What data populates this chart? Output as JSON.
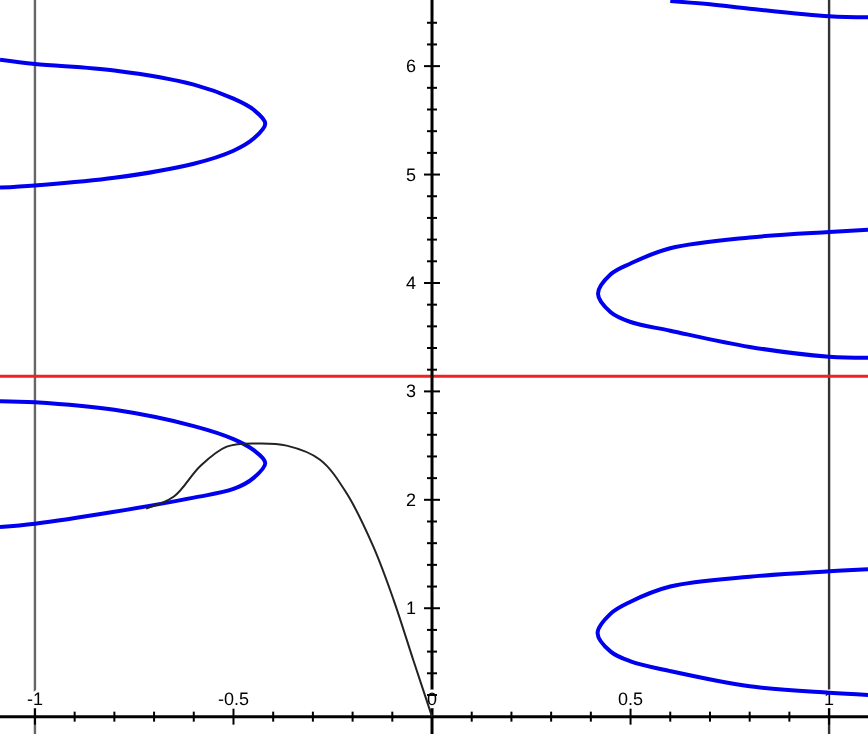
{
  "chart_data": {
    "type": "line",
    "xlim": [
      -1.088,
      1.098
    ],
    "ylim": [
      -0.16,
      6.61
    ],
    "xticks": [
      -1,
      {
        "value": -0.9,
        "label": null
      },
      {
        "value": -0.8,
        "label": null
      },
      {
        "value": -0.7,
        "label": null
      },
      {
        "value": -0.6,
        "label": null
      },
      -0.5,
      {
        "value": -0.4,
        "label": null
      },
      {
        "value": -0.3,
        "label": null
      },
      {
        "value": -0.2,
        "label": null
      },
      {
        "value": -0.1,
        "label": null
      },
      0,
      {
        "value": 0.1,
        "label": null
      },
      {
        "value": 0.2,
        "label": null
      },
      {
        "value": 0.3,
        "label": null
      },
      {
        "value": 0.4,
        "label": null
      },
      0.5,
      {
        "value": 0.6,
        "label": null
      },
      {
        "value": 0.7,
        "label": null
      },
      {
        "value": 0.8,
        "label": null
      },
      {
        "value": 0.9,
        "label": null
      },
      1
    ],
    "yticks": [
      {
        "value": 0.2,
        "label": null
      },
      {
        "value": 0.4,
        "label": null
      },
      {
        "value": 0.6,
        "label": null
      },
      {
        "value": 0.8,
        "label": null
      },
      1,
      {
        "value": 1.2,
        "label": null
      },
      {
        "value": 1.4,
        "label": null
      },
      {
        "value": 1.6,
        "label": null
      },
      {
        "value": 1.8,
        "label": null
      },
      2,
      {
        "value": 2.2,
        "label": null
      },
      {
        "value": 2.4,
        "label": null
      },
      {
        "value": 2.6,
        "label": null
      },
      {
        "value": 2.8,
        "label": null
      },
      3,
      {
        "value": 3.2,
        "label": null
      },
      {
        "value": 3.4,
        "label": null
      },
      {
        "value": 3.6,
        "label": null
      },
      {
        "value": 3.8,
        "label": null
      },
      4,
      {
        "value": 4.2,
        "label": null
      },
      {
        "value": 4.4,
        "label": null
      },
      {
        "value": 4.6,
        "label": null
      },
      {
        "value": 4.8,
        "label": null
      },
      5,
      {
        "value": 5.2,
        "label": null
      },
      {
        "value": 5.4,
        "label": null
      },
      {
        "value": 5.6,
        "label": null
      },
      {
        "value": 5.8,
        "label": null
      },
      6,
      {
        "value": 6.2,
        "label": null
      },
      {
        "value": 6.4,
        "label": null
      }
    ],
    "grid": false,
    "ref_lines": [
      {
        "axis": "x",
        "value": -1,
        "color": "#666666"
      },
      {
        "axis": "x",
        "value": 1,
        "color": "#333333"
      },
      {
        "axis": "y",
        "value": 3.14,
        "color": "#ee2222"
      }
    ],
    "series": [
      {
        "color": "#0000ee",
        "x": [
          -1.088,
          -1,
          -0.8,
          -0.6,
          -0.5,
          -0.45,
          -0.42,
          -0.45,
          -0.5,
          -0.6,
          -0.8,
          -1,
          -1.088
        ],
        "values": [
          6.06,
          6.02,
          5.96,
          5.83,
          5.7,
          5.6,
          5.47,
          5.33,
          5.22,
          5.1,
          4.97,
          4.9,
          4.88
        ]
      },
      {
        "color": "#0000ee",
        "x": [
          -1.088,
          -1,
          -0.8,
          -0.6,
          -0.5,
          -0.45,
          -0.42,
          -0.45,
          -0.5,
          -0.6,
          -0.8,
          -1,
          -1.088
        ],
        "values": [
          2.91,
          2.9,
          2.83,
          2.68,
          2.56,
          2.46,
          2.34,
          2.2,
          2.1,
          2.02,
          1.89,
          1.78,
          1.75
        ]
      },
      {
        "color": "#0000ee",
        "x": [
          1.098,
          1,
          0.8,
          0.6,
          0.5,
          0.45,
          0.418,
          0.45,
          0.5,
          0.6,
          0.8,
          1,
          1.098
        ],
        "values": [
          4.49,
          4.47,
          4.42,
          4.32,
          4.18,
          4.08,
          3.9,
          3.73,
          3.64,
          3.56,
          3.41,
          3.32,
          3.31
        ]
      },
      {
        "color": "#0000ee",
        "x": [
          1.098,
          1,
          0.8,
          0.6,
          0.5,
          0.45,
          0.417,
          0.45,
          0.5,
          0.6,
          0.8,
          1,
          1.098
        ],
        "values": [
          1.36,
          1.34,
          1.29,
          1.2,
          1.06,
          0.95,
          0.77,
          0.6,
          0.51,
          0.42,
          0.28,
          0.22,
          0.2
        ]
      },
      {
        "color": "#0000ee",
        "x": [
          0.6,
          0.7,
          0.8,
          1,
          1.098
        ],
        "values": [
          6.6,
          6.57,
          6.53,
          6.46,
          6.45
        ]
      },
      {
        "color": "#222222",
        "x": [
          -0.72,
          -0.65,
          -0.584,
          -0.517,
          -0.44,
          -0.366,
          -0.282,
          -0.215,
          -0.148,
          -0.097,
          -0.047,
          0
        ],
        "values": [
          1.92,
          2.03,
          2.31,
          2.49,
          2.52,
          2.5,
          2.37,
          2.06,
          1.57,
          1.08,
          0.52,
          0
        ]
      }
    ]
  }
}
